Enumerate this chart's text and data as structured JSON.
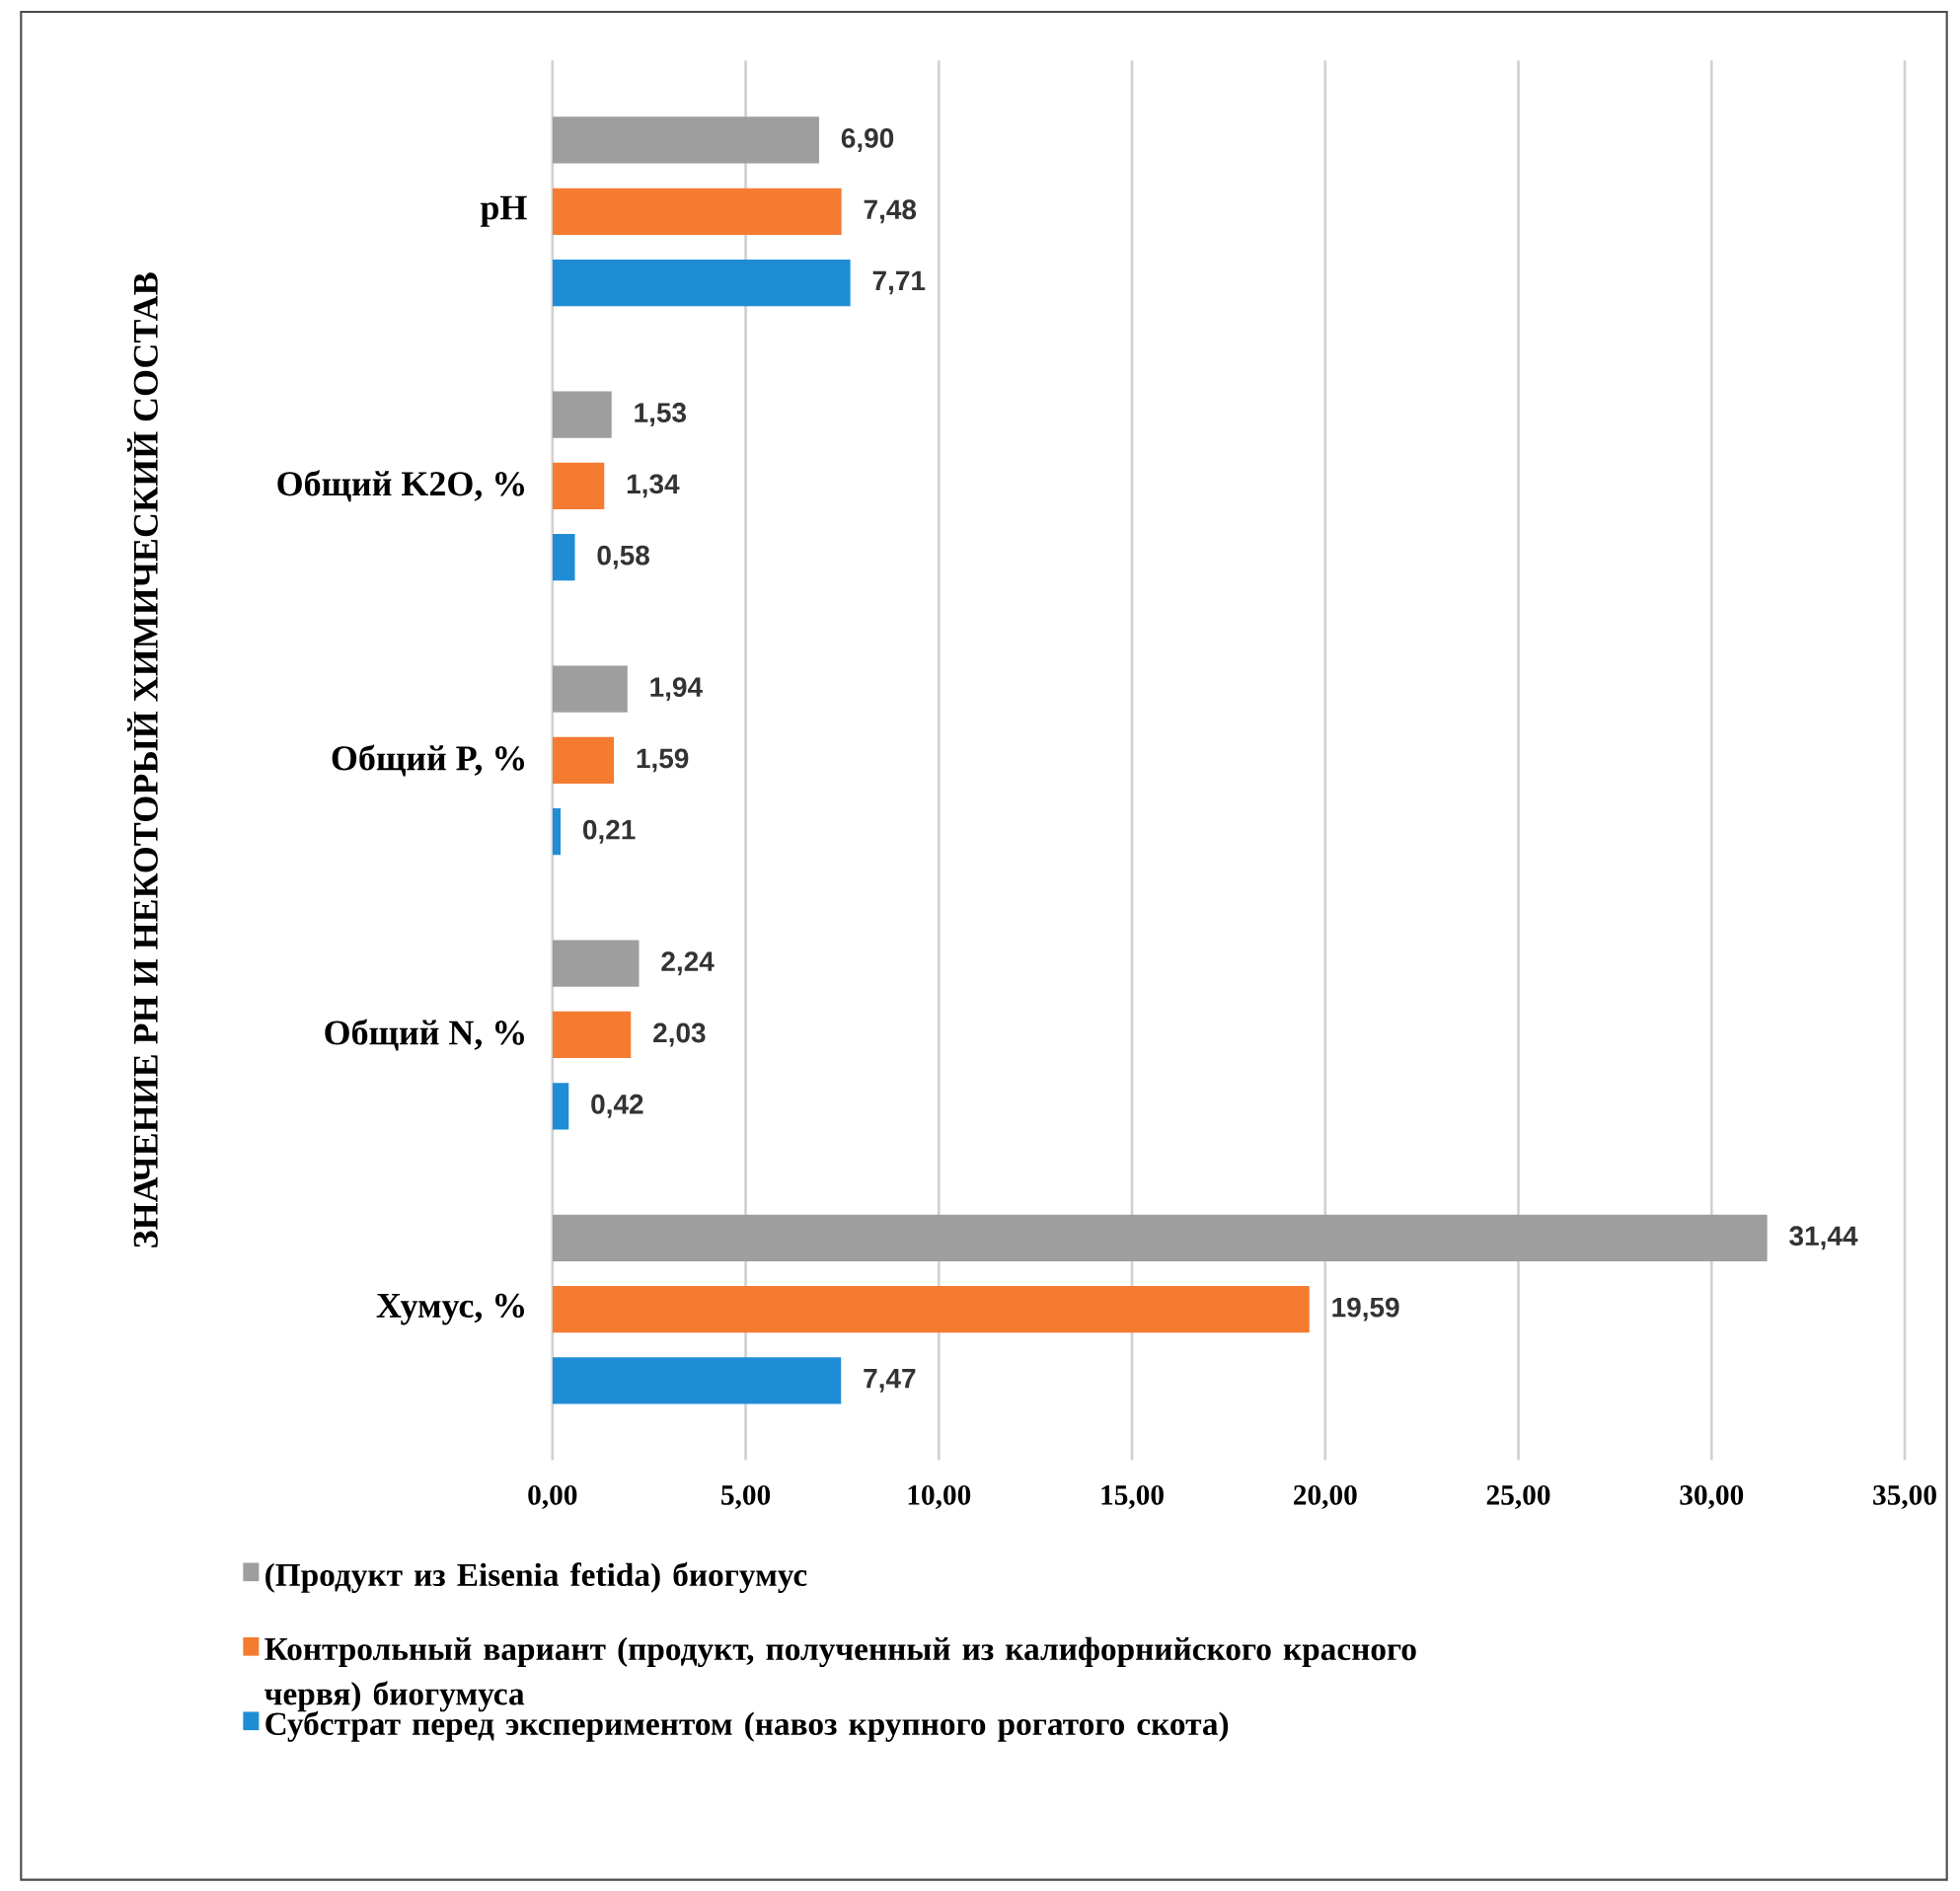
{
  "chart_data": {
    "type": "bar",
    "orientation": "horizontal",
    "ylabel": "ЗНАЧЕНИЕ РН И НЕКОТОРЫЙ ХИМИЧЕСКИЙ СОСТАВ",
    "categories": [
      "pH",
      "Общий K2O, %",
      "Общий P, %",
      "Общий N, %",
      "Хумус, %"
    ],
    "series": [
      {
        "name": "(Продукт из Eisenia fetida) биогумус",
        "color": "#9e9e9e",
        "values": [
          6.9,
          1.53,
          1.94,
          2.24,
          31.44
        ],
        "value_labels": [
          "6,90",
          "1,53",
          "1,94",
          "2,24",
          "31,44"
        ]
      },
      {
        "name": "Контрольный вариант (продукт, полученный из калифорнийского красного червя) биогумуса",
        "color": "#f47b30",
        "values": [
          7.48,
          1.34,
          1.59,
          2.03,
          19.59
        ],
        "value_labels": [
          "7,48",
          "1,34",
          "1,59",
          "2,03",
          "19,59"
        ]
      },
      {
        "name": "Субстрат перед экспериментом (навоз крупного рогатого скота)",
        "color": "#1f8dd6",
        "values": [
          7.71,
          0.58,
          0.21,
          0.42,
          7.47
        ],
        "value_labels": [
          "7,71",
          "0,58",
          "0,21",
          "0,42",
          "7,47"
        ]
      }
    ],
    "xlim": [
      0,
      35
    ],
    "xticks": [
      {
        "value": 0,
        "label": "0,00"
      },
      {
        "value": 5,
        "label": "5,00"
      },
      {
        "value": 10,
        "label": "10,00"
      },
      {
        "value": 15,
        "label": "15,00"
      },
      {
        "value": 20,
        "label": "20,00"
      },
      {
        "value": 25,
        "label": "25,00"
      },
      {
        "value": 30,
        "label": "30,00"
      },
      {
        "value": 35,
        "label": "35,00"
      }
    ],
    "grid": "x",
    "legend": "bottom"
  }
}
